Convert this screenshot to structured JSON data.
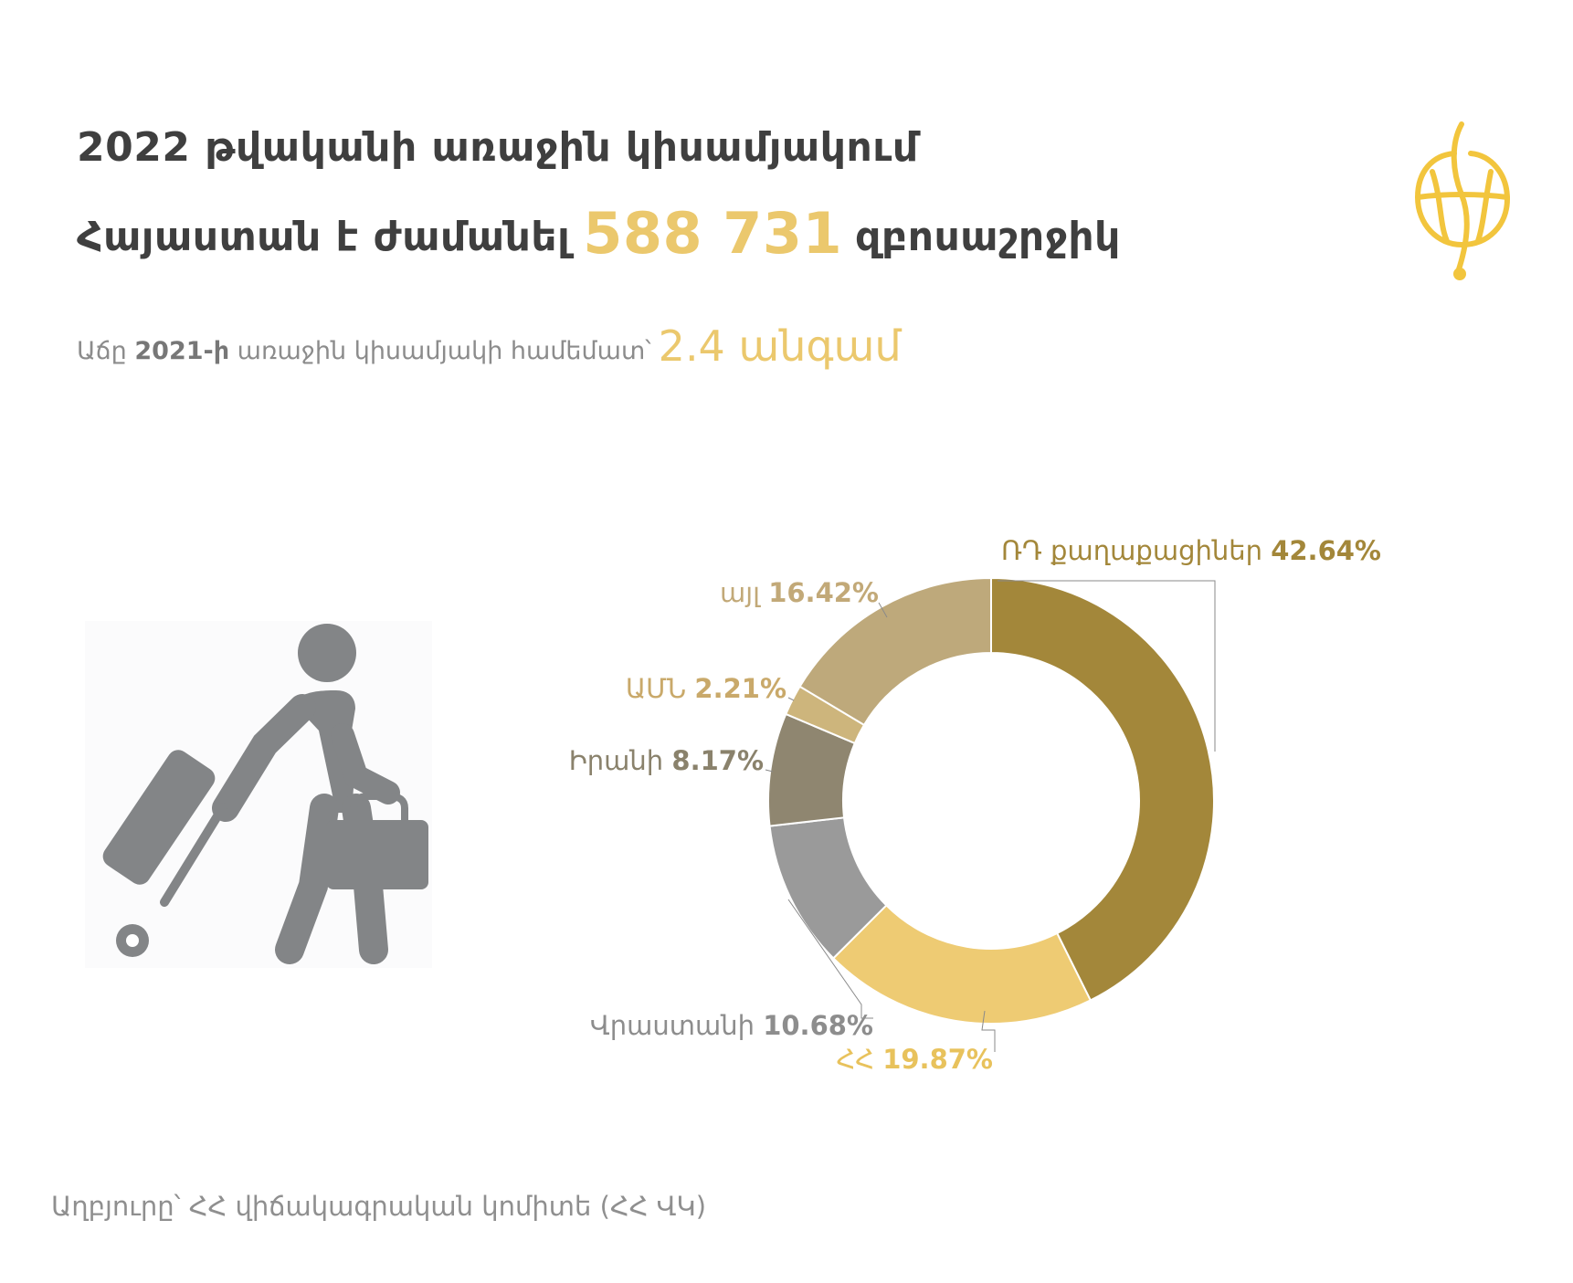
{
  "header": {
    "line1": "2022 թվականի առաջին կիսամյակում",
    "line2_prefix": "Հայաստան է ժամանել",
    "highlight_number": "588 731",
    "line2_suffix": "զբոսաշրջիկ",
    "subtitle_prefix": "Աճը",
    "subtitle_bold": "2021-ի",
    "subtitle_mid": "առաջին կիսամյակի համեմատ՝",
    "subtitle_highlight": "2.4 անգամ"
  },
  "icons": {
    "logo": "gold-globe-logo-icon",
    "figure": "traveler-with-suitcase-icon"
  },
  "colors": {
    "title": "#3f3f3f",
    "highlight": "#ebc86d",
    "text_gray": "#8c8c8c"
  },
  "chart_data": {
    "type": "pie",
    "donut": true,
    "unit": "%",
    "series": [
      {
        "name": "ՌԴ քաղաքացիներ",
        "label": "42.64%",
        "value": 42.64,
        "color": "#a3873a"
      },
      {
        "name": "ՀՀ",
        "label": "19.87%",
        "value": 19.87,
        "color": "#eecb73"
      },
      {
        "name": "Վրաստանի",
        "label": "10.68%",
        "value": 10.68,
        "color": "#9a9a9a"
      },
      {
        "name": "Իրանի",
        "label": "8.17%",
        "value": 8.17,
        "color": "#8f8670"
      },
      {
        "name": "ԱՄՆ",
        "label": "2.21%",
        "value": 2.21,
        "color": "#cdb57c"
      },
      {
        "name": "այլ",
        "label": "16.42%",
        "value": 16.42,
        "color": "#bea97b"
      }
    ],
    "label_colors": [
      "#a3873a",
      "#e8c25c",
      "#8d8d8d",
      "#8a826c",
      "#c9a96a",
      "#c2a978"
    ]
  },
  "footer": {
    "source": "Աղբյուրը՝ ՀՀ վիճակագրական կոմիտե (ՀՀ ՎԿ)"
  }
}
